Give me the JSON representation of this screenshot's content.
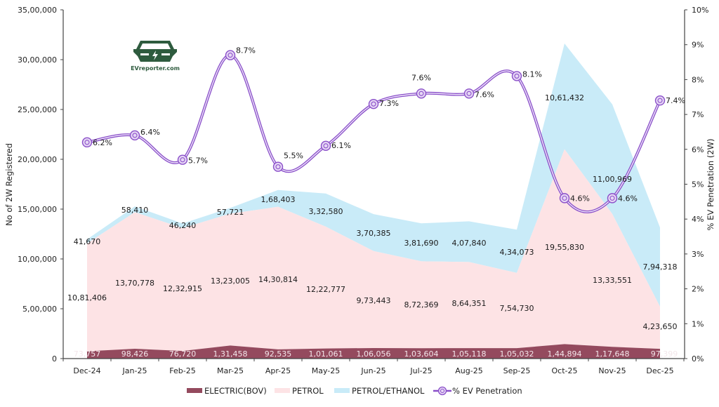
{
  "chart_data": {
    "type": "area",
    "title": "",
    "xlabel": "",
    "ylabel": "No of 2W Registered",
    "y2label": "% EV Penetration (2W)",
    "categories": [
      "Dec-24",
      "Jan-25",
      "Feb-25",
      "Mar-25",
      "Apr-25",
      "May-25",
      "Jun-25",
      "Jul-25",
      "Aug-25",
      "Sep-25",
      "Oct-25",
      "Nov-25",
      "Dec-25"
    ],
    "ylim": [
      0,
      3500000
    ],
    "y2lim": [
      0,
      10
    ],
    "y_ticks": [
      "0",
      "5,00,000",
      "10,00,000",
      "15,00,000",
      "20,00,000",
      "25,00,000",
      "30,00,000",
      "35,00,000"
    ],
    "y2_ticks": [
      "0%",
      "1%",
      "2%",
      "3%",
      "4%",
      "5%",
      "6%",
      "7%",
      "8%",
      "9%",
      "10%"
    ],
    "grid": false,
    "legend_position": "bottom",
    "series": [
      {
        "name": "ELECTRIC(BOV)",
        "kind": "stacked-area",
        "color": "#944a5e",
        "values": [
          73757,
          98426,
          76720,
          131458,
          92535,
          101061,
          106056,
          103604,
          105118,
          105032,
          144894,
          117648,
          97399
        ],
        "labels": [
          "73,757",
          "98,426",
          "76,720",
          "1,31,458",
          "92,535",
          "1,01,061",
          "1,06,056",
          "1,03,604",
          "1,05,118",
          "1,05,032",
          "1,44,894",
          "1,17,648",
          "97,399"
        ]
      },
      {
        "name": "PETROL",
        "kind": "stacked-area",
        "color": "#fde3e5",
        "values": [
          1081406,
          1370778,
          1232915,
          1323005,
          1430814,
          1222777,
          973443,
          872369,
          864351,
          754730,
          1955830,
          1333551,
          423650
        ],
        "labels": [
          "10,81,406",
          "13,70,778",
          "12,32,915",
          "13,23,005",
          "14,30,814",
          "12,22,777",
          "9,73,443",
          "8,72,369",
          "8,64,351",
          "7,54,730",
          "19,55,830",
          "13,33,551",
          "4,23,650"
        ]
      },
      {
        "name": "PETROL/ETHANOL",
        "kind": "stacked-area",
        "color": "#c9ebf8",
        "values": [
          41670,
          58410,
          46240,
          57721,
          168403,
          332580,
          370385,
          381690,
          407840,
          434073,
          1061432,
          1100969,
          794318
        ],
        "labels": [
          "41,670",
          "58,410",
          "46,240",
          "57,721",
          "1,68,403",
          "3,32,580",
          "3,70,385",
          "3,81,690",
          "4,07,840",
          "4,34,073",
          "10,61,432",
          "11,00,969",
          "7,94,318"
        ]
      },
      {
        "name": "% EV Penetration",
        "kind": "line",
        "axis": "secondary",
        "color": "#8a4fc9",
        "values": [
          6.2,
          6.4,
          5.7,
          8.7,
          5.5,
          6.1,
          7.3,
          7.6,
          7.6,
          8.1,
          4.6,
          4.6,
          7.4
        ],
        "labels": [
          "6.2%",
          "6.4%",
          "5.7%",
          "8.7%",
          "5.5%",
          "6.1%",
          "7.3%",
          "7.6%",
          "7.6%",
          "8.1%",
          "4.6%",
          "4.6%",
          "7.4%"
        ]
      }
    ]
  },
  "logo": {
    "text": "EVreporter.com",
    "color": "#2e5b3e"
  }
}
